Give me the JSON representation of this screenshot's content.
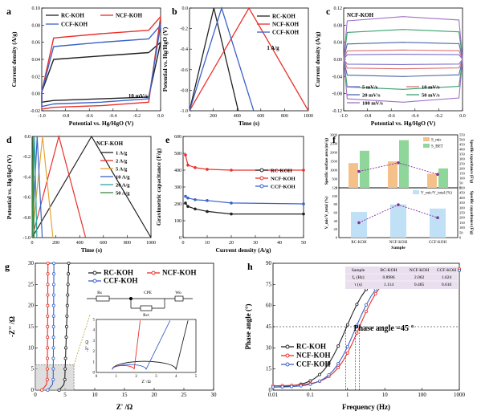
{
  "colors": {
    "rc": "#222222",
    "ncf": "#e8302a",
    "ccf": "#3a62c8",
    "orange": "#f5c18a",
    "green": "#8fd69a",
    "lightblue": "#bfe0f5",
    "purple": "#8a2d9e"
  },
  "chart_data": [
    {
      "id": "a",
      "type": "line",
      "panel_label": "a",
      "title": "",
      "xlabel": "Potential vs. Hg/HgO (V)",
      "ylabel": "Current density (A/g)",
      "xlim": [
        -1.0,
        0.0
      ],
      "ylim": [
        -0.02,
        0.1
      ],
      "xticks": [
        "-1.0",
        "-0.8",
        "-0.6",
        "-0.4",
        "-0.2",
        "0.0"
      ],
      "yticks": [
        "-0.02",
        "0.00",
        "0.02",
        "0.04",
        "0.06",
        "0.08",
        "0.10"
      ],
      "annotation": "10 mV/s",
      "series": [
        {
          "name": "RC-KOH",
          "x": [
            -1.0,
            -0.9,
            -0.5,
            -0.1,
            0.0,
            -0.1,
            -0.5,
            -0.9,
            -1.0
          ],
          "y": [
            0.002,
            0.04,
            0.044,
            0.048,
            0.06,
            -0.004,
            -0.006,
            -0.008,
            -0.01
          ]
        },
        {
          "name": "NCF-KOH",
          "x": [
            -1.0,
            -0.9,
            -0.5,
            -0.1,
            0.0,
            -0.1,
            -0.5,
            -0.9,
            -1.0
          ],
          "y": [
            0.002,
            0.065,
            0.07,
            0.074,
            0.09,
            -0.01,
            -0.014,
            -0.016,
            -0.018
          ]
        },
        {
          "name": "CCF-KOH",
          "x": [
            -1.0,
            -0.9,
            -0.5,
            -0.1,
            0.0,
            -0.1,
            -0.5,
            -0.9,
            -1.0
          ],
          "y": [
            0.002,
            0.055,
            0.06,
            0.064,
            0.08,
            -0.006,
            -0.01,
            -0.012,
            -0.015
          ]
        }
      ]
    },
    {
      "id": "b",
      "type": "line",
      "panel_label": "b",
      "xlabel": "Time (s)",
      "ylabel": "Potential vs. Hg/HgO (V)",
      "xlim": [
        0,
        1000
      ],
      "ylim": [
        -1.0,
        0.0
      ],
      "xticks": [
        "0",
        "200",
        "400",
        "600",
        "800",
        "1000"
      ],
      "yticks": [
        "-1.0",
        "-0.8",
        "-0.6",
        "-0.4",
        "-0.2",
        "0.0"
      ],
      "annotation": "1 A/g",
      "series": [
        {
          "name": "RC-KOH",
          "x": [
            0,
            205,
            410
          ],
          "y": [
            -1.0,
            0.0,
            -1.0
          ]
        },
        {
          "name": "NCF-KOH",
          "x": [
            0,
            500,
            1000
          ],
          "y": [
            -1.0,
            0.0,
            -1.0
          ]
        },
        {
          "name": "CCF-KOH",
          "x": [
            0,
            270,
            540
          ],
          "y": [
            -1.0,
            0.0,
            -1.0
          ]
        }
      ]
    },
    {
      "id": "c",
      "type": "line",
      "panel_label": "c",
      "title": "NCF-KOH",
      "xlabel": "Potential vs. Hg/HgO (V)",
      "ylabel": "Current density (A/g)",
      "xlim": [
        -1.0,
        0.0
      ],
      "ylim": [
        -0.12,
        0.12
      ],
      "xticks": [
        "-1.0",
        "-0.8",
        "-0.6",
        "-0.4",
        "-0.2",
        "0.0"
      ],
      "yticks": [
        "-0.12",
        "-0.08",
        "-0.04",
        "0.00",
        "0.04",
        "0.08",
        "0.12"
      ],
      "series": [
        {
          "name": "5 mV/s",
          "amp": 0.012
        },
        {
          "name": "10 mV/s",
          "amp": 0.022
        },
        {
          "name": "20 mV/s",
          "amp": 0.04
        },
        {
          "name": "50 mV/s",
          "amp": 0.07
        },
        {
          "name": "100 mV/s",
          "amp": 0.1
        }
      ]
    },
    {
      "id": "d",
      "type": "line",
      "panel_label": "d",
      "title": "NCF-KOH",
      "xlabel": "Time (s)",
      "ylabel": "Potential vs. Hg/HgO (V)",
      "xlim": [
        0,
        1000
      ],
      "ylim": [
        -1.0,
        0.0
      ],
      "xticks": [
        "0",
        "200",
        "400",
        "600",
        "800",
        "1000"
      ],
      "yticks": [
        "-1.0",
        "-0.8",
        "-0.6",
        "-0.4",
        "-0.2",
        "0.0"
      ],
      "series": [
        {
          "name": "1 A/g",
          "end": 1000
        },
        {
          "name": "2 A/g",
          "end": 450
        },
        {
          "name": "5 A/g",
          "end": 175
        },
        {
          "name": "10 A/g",
          "end": 85
        },
        {
          "name": "20 A/g",
          "end": 40
        },
        {
          "name": "50 A/g",
          "end": 16
        }
      ]
    },
    {
      "id": "e",
      "type": "line",
      "panel_label": "e",
      "xlabel": "Current density (A/g)",
      "ylabel": "Gravimetric capacitance (F/g)",
      "xlim": [
        0,
        50
      ],
      "ylim": [
        0,
        600
      ],
      "xticks": [
        "0",
        "10",
        "20",
        "30",
        "40",
        "50"
      ],
      "yticks": [
        "0",
        "100",
        "200",
        "300",
        "400",
        "500",
        "600"
      ],
      "x": [
        1,
        2,
        5,
        10,
        20,
        50
      ],
      "series": [
        {
          "name": "RC-KOH",
          "values": [
            205,
            185,
            170,
            155,
            140,
            140
          ]
        },
        {
          "name": "NCF-KOH",
          "values": [
            490,
            430,
            415,
            405,
            400,
            400
          ]
        },
        {
          "name": "CCF-KOH",
          "values": [
            245,
            235,
            225,
            220,
            205,
            200
          ]
        }
      ]
    },
    {
      "id": "f",
      "type": "bar",
      "panel_label": "f",
      "categories": [
        "RC-KOH",
        "NCF-KOH",
        "CCF-KOH"
      ],
      "xlabel": "Sample",
      "top": {
        "ylabel": "Specific surface area (m²/g)",
        "y2label": "Specific capacitance (F/g)",
        "yticks": [
          "0",
          "500",
          "1000",
          "1500",
          "2000",
          "2500",
          "3000"
        ],
        "y2ticks": [
          "0",
          "50",
          "100",
          "150",
          "200",
          "250",
          "300",
          "350",
          "400",
          "450",
          "500",
          "550"
        ],
        "legend": [
          "S_mic",
          "S_BET"
        ],
        "S_mic": [
          1400,
          1500,
          800
        ],
        "S_BET": [
          2100,
          2700,
          1100
        ],
        "line": [
          170,
          260,
          140
        ]
      },
      "bottom": {
        "ylabel": "V_mic/V_total (%)",
        "yticks": [
          "0",
          "20",
          "40",
          "60",
          "80",
          "100",
          "120"
        ],
        "y2ticks": [
          "0",
          "50",
          "100",
          "150",
          "200",
          "250",
          "300",
          "350",
          "400",
          "450",
          "500"
        ],
        "legend": "V_mic/V_total (%)",
        "values": [
          62,
          80,
          70
        ],
        "line": [
          150,
          330,
          200
        ]
      }
    },
    {
      "id": "g",
      "type": "line",
      "panel_label": "g",
      "xlabel": "Z' /Ω",
      "ylabel": "-Z'' /Ω",
      "xlim": [
        0,
        30
      ],
      "ylim": [
        0,
        30
      ],
      "xticks": [
        "0",
        "5",
        "10",
        "15",
        "20",
        "25",
        "30"
      ],
      "yticks": [
        "0",
        "5",
        "10",
        "15",
        "20",
        "25",
        "30"
      ],
      "series": [
        {
          "name": "RC-KOH",
          "xv": 5.5
        },
        {
          "name": "NCF-KOH",
          "xv": 2.6
        },
        {
          "name": "CCF-KOH",
          "xv": 3.6
        }
      ],
      "inset": {
        "xlabel": "Z' /Ω",
        "ylabel": "-Z'' /Ω",
        "xticks": [
          "0",
          "1",
          "2",
          "3",
          "4",
          "5"
        ],
        "yticks": [
          "0",
          "1",
          "2",
          "3",
          "4",
          "5"
        ]
      },
      "circuit": [
        "Rs",
        "CPE",
        "Rct",
        "Wo"
      ]
    },
    {
      "id": "h",
      "type": "line",
      "panel_label": "h",
      "xlabel": "Frequency (Hz)",
      "ylabel": "Phase angle (°)",
      "xlim": [
        0.01,
        1000
      ],
      "ylim": [
        0,
        90
      ],
      "xticks": [
        "0.01",
        "0.1",
        "1",
        "10",
        "100",
        "1000"
      ],
      "yticks": [
        "0",
        "15",
        "30",
        "45",
        "60",
        "75",
        "90"
      ],
      "annotation": "Phase angle =45 °",
      "series": [
        {
          "name": "RC-KOH",
          "f0": 0.8986
        },
        {
          "name": "NCF-KOH",
          "f0": 2.062
        },
        {
          "name": "CCF-KOH",
          "f0": 1.624
        }
      ],
      "table": {
        "header": [
          "Sample",
          "RC-KOH",
          "NCF-KOH",
          "CCF-KOH"
        ],
        "rows": [
          [
            "f₀ (Hz)",
            "0.8986",
            "2.062",
            "1.624"
          ],
          [
            "τ (s)",
            "1.114",
            "0.485",
            "0.616"
          ]
        ]
      }
    }
  ]
}
